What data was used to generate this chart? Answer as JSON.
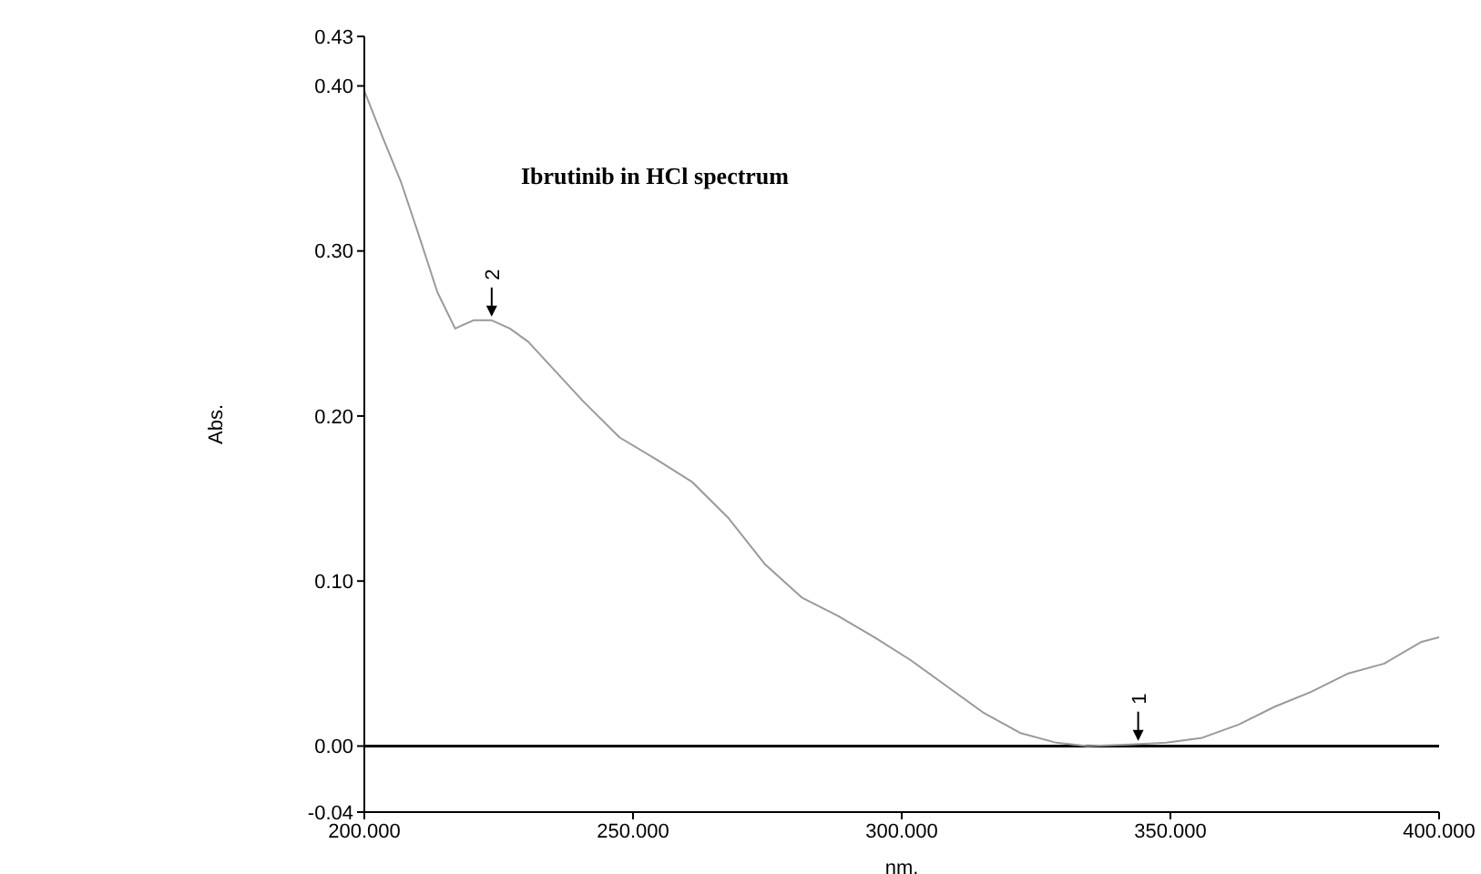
{
  "chart_data": {
    "type": "line",
    "title": "Ibrutinib in HCl spectrum",
    "xlabel": "nm.",
    "ylabel": "Abs.",
    "x": [
      200,
      203.4,
      206.8,
      210.2,
      213.6,
      216.9,
      220.3,
      223.7,
      227.1,
      230.5,
      233.9,
      240.7,
      247.5,
      254.2,
      261.0,
      267.8,
      274.6,
      281.4,
      288.1,
      294.9,
      301.7,
      308.5,
      315.3,
      322.0,
      328.8,
      334.6,
      342.4,
      349.2,
      355.9,
      362.7,
      369.5,
      376.3,
      383.1,
      389.8,
      396.6,
      400
    ],
    "series": [
      {
        "color": "#9a9a9a",
        "values": [
          0.397,
          0.369,
          0.342,
          0.309,
          0.275,
          0.253,
          0.258,
          0.258,
          0.253,
          0.245,
          0.233,
          0.209,
          0.187,
          0.174,
          0.16,
          0.138,
          0.11,
          0.09,
          0.079,
          0.066,
          0.052,
          0.036,
          0.02,
          0.008,
          0.002,
          0.0,
          0.001,
          0.002,
          0.005,
          0.013,
          0.024,
          0.033,
          0.044,
          0.05,
          0.063,
          0.066
        ]
      }
    ],
    "xlim": [
      200,
      400
    ],
    "xticks": [
      {
        "value": 200,
        "label": "200.000"
      },
      {
        "value": 250,
        "label": "250.000"
      },
      {
        "value": 300,
        "label": "300.000"
      },
      {
        "value": 350,
        "label": "350.000"
      },
      {
        "value": 400,
        "label": "400.000"
      }
    ],
    "ylim": [
      -0.04,
      0.43
    ],
    "yticks": [
      {
        "value": -0.04,
        "label": "-0.04"
      },
      {
        "value": 0,
        "label": "0.00"
      },
      {
        "value": 0.1,
        "label": "0.10"
      },
      {
        "value": 0.2,
        "label": "0.20"
      },
      {
        "value": 0.3,
        "label": "0.30"
      },
      {
        "value": 0.4,
        "label": "0.40"
      },
      {
        "value": 0.43,
        "label": "0.43"
      }
    ],
    "ref_lines": [
      {
        "axis": "y",
        "value": 0,
        "color": "#000000"
      }
    ],
    "annotations": [
      {
        "text": "2",
        "x": 223.7,
        "y": 0.258
      },
      {
        "text": "1",
        "x": 344,
        "y": 0.001
      }
    ],
    "marker": "none",
    "line_style": "solid"
  }
}
